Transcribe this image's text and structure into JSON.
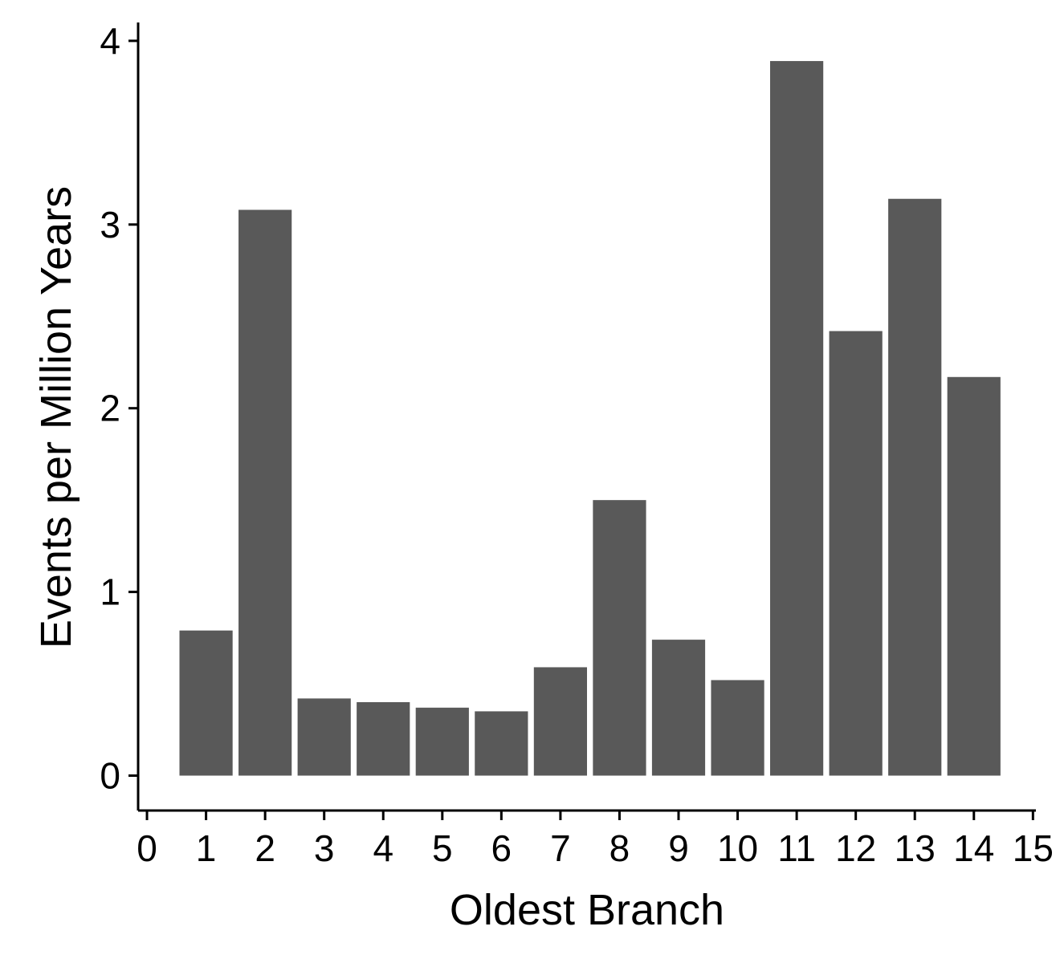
{
  "chart_data": {
    "type": "bar",
    "title": "",
    "xlabel": "Oldest Branch",
    "ylabel": "Events per Million Years",
    "x": [
      1,
      2,
      3,
      4,
      5,
      6,
      7,
      8,
      9,
      10,
      11,
      12,
      13,
      14
    ],
    "values": [
      0.79,
      3.08,
      0.42,
      0.4,
      0.37,
      0.35,
      0.59,
      1.5,
      0.74,
      0.52,
      3.89,
      2.42,
      3.14,
      2.17
    ],
    "xlim": [
      -0.15,
      15.05
    ],
    "ylim": [
      -0.19,
      4.1
    ],
    "xticks": [
      0,
      1,
      2,
      3,
      4,
      5,
      6,
      7,
      8,
      9,
      10,
      11,
      12,
      13,
      14,
      15
    ],
    "xtick_labels": [
      "0",
      "1",
      "2",
      "3",
      "4",
      "5",
      "6",
      "7",
      "8",
      "9",
      "10",
      "11",
      "12",
      "13",
      "14",
      "15"
    ],
    "yticks": [
      0,
      1,
      2,
      3,
      4
    ],
    "ytick_labels": [
      "0",
      "1",
      "2",
      "3",
      "4"
    ],
    "bar_width": 0.9,
    "bar_color": "#595959",
    "grid": false,
    "legend": "none"
  }
}
